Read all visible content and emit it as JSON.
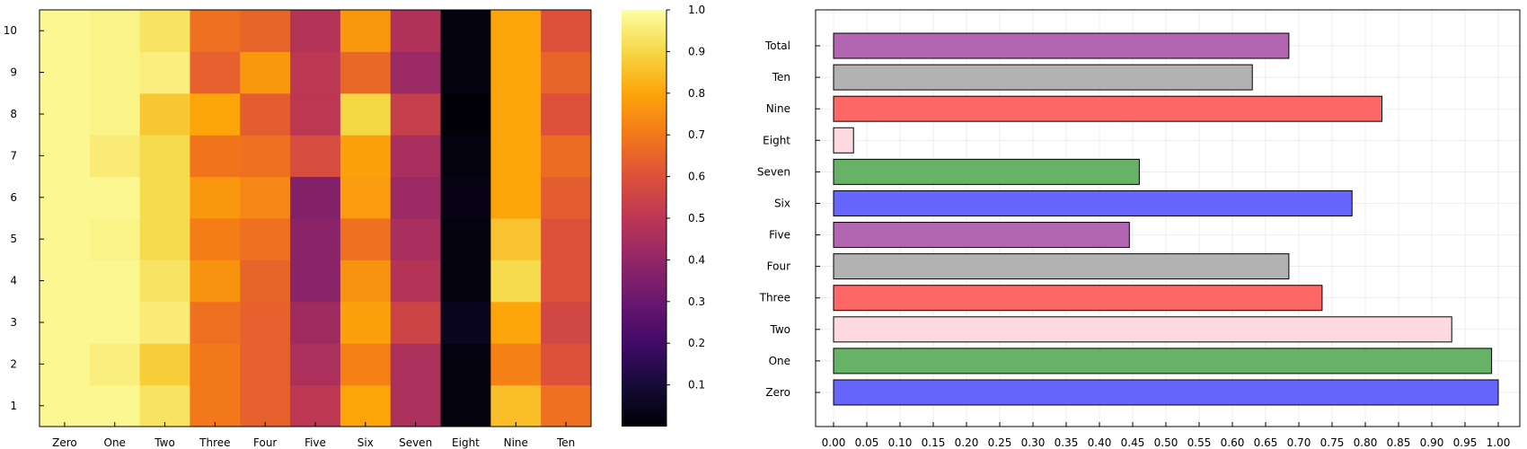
{
  "chart_data": [
    {
      "type": "heatmap",
      "x_categories": [
        "Zero",
        "One",
        "Two",
        "Three",
        "Four",
        "Five",
        "Six",
        "Seven",
        "Eight",
        "Nine",
        "Ten"
      ],
      "y_categories": [
        "1",
        "2",
        "3",
        "4",
        "5",
        "6",
        "7",
        "8",
        "9",
        "10"
      ],
      "values": [
        [
          0.98,
          0.98,
          0.93,
          0.7,
          0.64,
          0.5,
          0.8,
          0.46,
          0.02,
          0.85,
          0.68
        ],
        [
          0.98,
          0.96,
          0.88,
          0.7,
          0.64,
          0.46,
          0.72,
          0.46,
          0.02,
          0.72,
          0.6
        ],
        [
          0.98,
          0.98,
          0.95,
          0.68,
          0.64,
          0.43,
          0.79,
          0.55,
          0.05,
          0.8,
          0.56
        ],
        [
          0.98,
          0.98,
          0.93,
          0.76,
          0.65,
          0.38,
          0.76,
          0.48,
          0.02,
          0.91,
          0.6
        ],
        [
          0.98,
          0.97,
          0.91,
          0.71,
          0.68,
          0.38,
          0.68,
          0.45,
          0.02,
          0.86,
          0.6
        ],
        [
          0.98,
          0.98,
          0.91,
          0.77,
          0.73,
          0.36,
          0.78,
          0.42,
          0.03,
          0.8,
          0.63
        ],
        [
          0.98,
          0.95,
          0.91,
          0.69,
          0.68,
          0.58,
          0.79,
          0.45,
          0.02,
          0.8,
          0.67
        ],
        [
          0.98,
          0.97,
          0.87,
          0.8,
          0.63,
          0.5,
          0.9,
          0.53,
          0.01,
          0.8,
          0.6
        ],
        [
          0.98,
          0.97,
          0.96,
          0.64,
          0.77,
          0.5,
          0.66,
          0.42,
          0.02,
          0.8,
          0.65
        ],
        [
          0.98,
          0.97,
          0.93,
          0.68,
          0.65,
          0.48,
          0.77,
          0.47,
          0.02,
          0.8,
          0.6
        ]
      ],
      "colormap": "inferno",
      "colorbar_range": [
        0.0,
        1.0
      ],
      "colorbar_ticks": [
        "0.1",
        "0.2",
        "0.3",
        "0.4",
        "0.5",
        "0.6",
        "0.7",
        "0.8",
        "0.9",
        "1.0"
      ]
    },
    {
      "type": "bar",
      "orientation": "horizontal",
      "categories": [
        "Zero",
        "One",
        "Two",
        "Three",
        "Four",
        "Five",
        "Six",
        "Seven",
        "Eight",
        "Nine",
        "Ten",
        "Total"
      ],
      "values": [
        1.0,
        0.99,
        0.93,
        0.735,
        0.685,
        0.445,
        0.78,
        0.46,
        0.03,
        0.825,
        0.63,
        0.685
      ],
      "colors": [
        "#6666ff",
        "#66b266",
        "#ffd9e0",
        "#ff6666",
        "#b2b2b2",
        "#b266b2",
        "#6666ff",
        "#66b266",
        "#ffd9e0",
        "#ff6666",
        "#b2b2b2",
        "#b266b2"
      ],
      "xlim": [
        0.0,
        1.0
      ],
      "x_ticks": [
        "0.00",
        "0.05",
        "0.10",
        "0.15",
        "0.20",
        "0.25",
        "0.30",
        "0.35",
        "0.40",
        "0.45",
        "0.50",
        "0.55",
        "0.60",
        "0.65",
        "0.70",
        "0.75",
        "0.80",
        "0.85",
        "0.90",
        "0.95",
        "1.00"
      ],
      "grid": true
    }
  ]
}
